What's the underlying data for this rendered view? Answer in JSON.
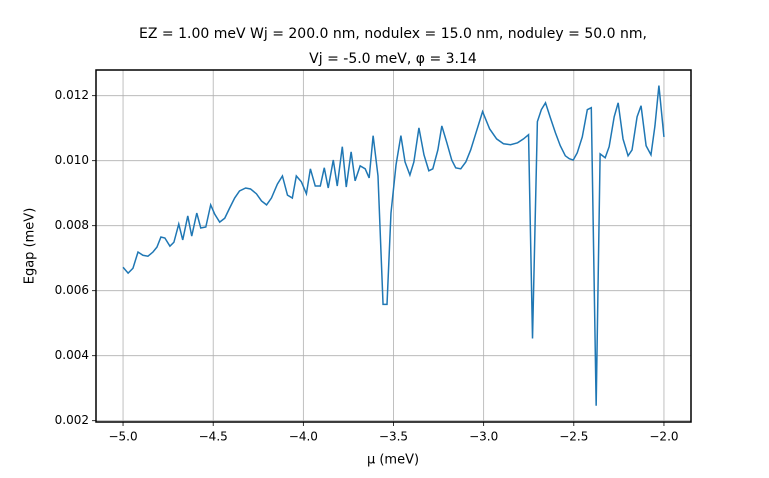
{
  "chart_data": {
    "type": "line",
    "title": [
      "EZ = 1.00 meV Wj = 200.0 nm, nodulex = 15.0 nm, noduley = 50.0 nm,",
      "Vj = -5.0 meV, φ = 3.14"
    ],
    "xlabel": "μ (meV)",
    "ylabel": "Egap (meV)",
    "x": [
      -5.0,
      -4.972,
      -4.945,
      -4.917,
      -4.89,
      -4.862,
      -4.834,
      -4.812,
      -4.79,
      -4.768,
      -4.74,
      -4.718,
      -4.691,
      -4.669,
      -4.641,
      -4.619,
      -4.591,
      -4.569,
      -4.541,
      -4.514,
      -4.492,
      -4.464,
      -4.436,
      -4.409,
      -4.381,
      -4.354,
      -4.32,
      -4.293,
      -4.26,
      -4.232,
      -4.204,
      -4.177,
      -4.144,
      -4.116,
      -4.088,
      -4.061,
      -4.039,
      -4.011,
      -3.983,
      -3.961,
      -3.934,
      -3.906,
      -3.884,
      -3.862,
      -3.834,
      -3.812,
      -3.784,
      -3.762,
      -3.735,
      -3.713,
      -3.685,
      -3.657,
      -3.635,
      -3.613,
      -3.586,
      -3.558,
      -3.536,
      -3.514,
      -3.486,
      -3.459,
      -3.436,
      -3.409,
      -3.387,
      -3.359,
      -3.331,
      -3.304,
      -3.282,
      -3.254,
      -3.232,
      -3.204,
      -3.177,
      -3.155,
      -3.127,
      -3.099,
      -3.072,
      -3.044,
      -3.006,
      -2.967,
      -2.928,
      -2.89,
      -2.851,
      -2.812,
      -2.779,
      -2.751,
      -2.729,
      -2.702,
      -2.68,
      -2.657,
      -2.63,
      -2.602,
      -2.575,
      -2.547,
      -2.525,
      -2.503,
      -2.481,
      -2.453,
      -2.425,
      -2.403,
      -2.376,
      -2.354,
      -2.326,
      -2.304,
      -2.276,
      -2.254,
      -2.227,
      -2.199,
      -2.177,
      -2.149,
      -2.127,
      -2.099,
      -2.072,
      -2.05,
      -2.028,
      -2.0
    ],
    "series": [
      {
        "color": "#1f77b4",
        "values": [
          0.00672,
          0.00654,
          0.00669,
          0.00719,
          0.00709,
          0.00706,
          0.00719,
          0.00734,
          0.00765,
          0.00762,
          0.00737,
          0.00749,
          0.00805,
          0.00756,
          0.0083,
          0.00768,
          0.00839,
          0.00793,
          0.00796,
          0.00864,
          0.00836,
          0.00811,
          0.00823,
          0.00854,
          0.00885,
          0.00907,
          0.00916,
          0.00913,
          0.00898,
          0.00876,
          0.00864,
          0.00885,
          0.00928,
          0.00953,
          0.00894,
          0.00885,
          0.00953,
          0.00935,
          0.00898,
          0.00975,
          0.00922,
          0.00922,
          0.00978,
          0.00916,
          0.01002,
          0.00922,
          0.01043,
          0.00919,
          0.01027,
          0.00938,
          0.00984,
          0.00975,
          0.00947,
          0.01077,
          0.00953,
          0.00558,
          0.00558,
          0.00839,
          0.00987,
          0.01077,
          0.00996,
          0.00956,
          0.00996,
          0.01101,
          0.01018,
          0.00969,
          0.00975,
          0.01033,
          0.01107,
          0.01055,
          0.01002,
          0.00978,
          0.00975,
          0.00996,
          0.01033,
          0.01083,
          0.01151,
          0.01098,
          0.01067,
          0.01052,
          0.01049,
          0.01055,
          0.01067,
          0.0108,
          0.00453,
          0.0112,
          0.01157,
          0.01178,
          0.01132,
          0.01086,
          0.01046,
          0.01015,
          0.01006,
          0.01002,
          0.01024,
          0.01073,
          0.01157,
          0.01163,
          0.00246,
          0.01021,
          0.01009,
          0.01043,
          0.01135,
          0.01178,
          0.01067,
          0.01015,
          0.01033,
          0.01135,
          0.01169,
          0.01046,
          0.01018,
          0.01107,
          0.01231,
          0.01073
        ]
      }
    ],
    "xlim": [
      -5.15,
      -1.85
    ],
    "xticks": [
      {
        "value": -5.0,
        "label": "−5.0"
      },
      {
        "value": -4.5,
        "label": "−4.5"
      },
      {
        "value": -4.0,
        "label": "−4.0"
      },
      {
        "value": -3.5,
        "label": "−3.5"
      },
      {
        "value": -3.0,
        "label": "−3.0"
      },
      {
        "value": -2.5,
        "label": "−2.5"
      },
      {
        "value": -2.0,
        "label": "−2.0"
      }
    ],
    "ylim": [
      0.00196,
      0.01279
    ],
    "yticks": [
      0.002,
      0.004,
      0.006,
      0.008,
      {
        "value": 0.01,
        "label": "0.010"
      },
      0.012
    ],
    "grid": true
  }
}
